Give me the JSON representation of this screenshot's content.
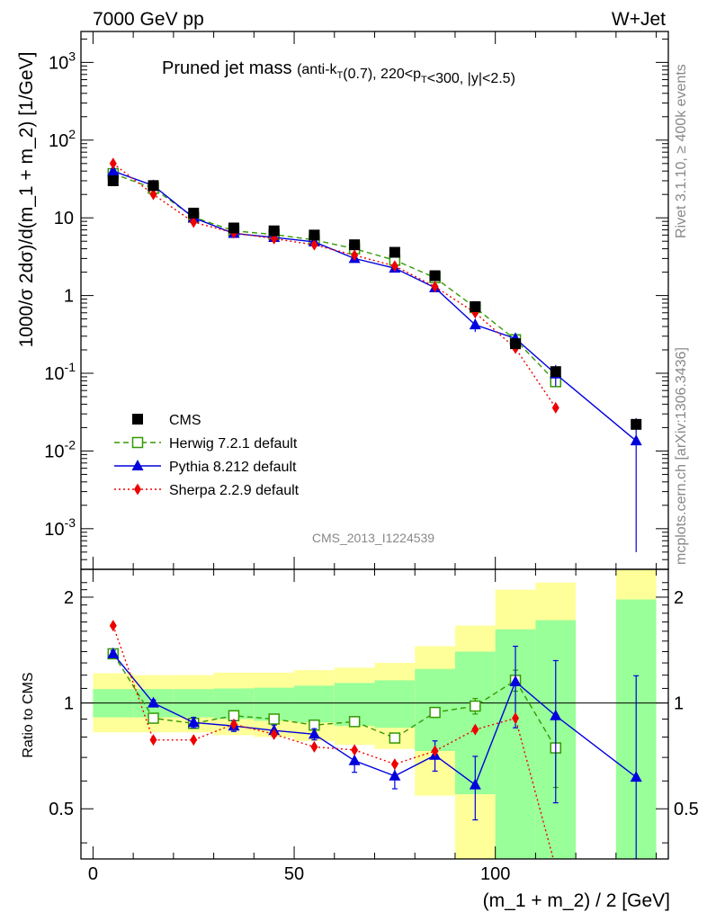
{
  "header": {
    "left_label": "7000 GeV pp",
    "right_label": "W+Jet"
  },
  "side_notes": {
    "rivet": "Rivet 3.1.10, ≥ 400k events",
    "mcplots": "mcplots.cern.ch [arXiv:1306.3436]"
  },
  "analysis_id": "CMS_2013_I1224539",
  "chart_data": [
    {
      "type": "scatter",
      "panel": "main",
      "title": "Pruned jet mass",
      "title_suffix": "(anti-k_T(0.7), 220<p_T<300, |y|<2.5)",
      "xlabel": "(m_1 + m_2) / 2 [GeV]",
      "ylabel": "1000/σ 2dσ)/d(m_1 + m_2) [1/GeV]",
      "log_y": true,
      "xlim": [
        -3,
        143
      ],
      "ylim": [
        0.0003,
        2500
      ],
      "y_ticks": [
        {
          "v": 0.001,
          "base": "10",
          "exp": "-3"
        },
        {
          "v": 0.01,
          "base": "10",
          "exp": "-2"
        },
        {
          "v": 0.1,
          "base": "10",
          "exp": "-1"
        },
        {
          "v": 1,
          "base": "1",
          "exp": ""
        },
        {
          "v": 10,
          "base": "10",
          "exp": ""
        },
        {
          "v": 100,
          "base": "10",
          "exp": "2"
        },
        {
          "v": 1000,
          "base": "10",
          "exp": "3"
        }
      ],
      "legend_position": "bottom-left",
      "series": [
        {
          "name": "CMS",
          "style": "data",
          "color": "#000000",
          "x": [
            5,
            15,
            25,
            35,
            45,
            55,
            65,
            75,
            85,
            95,
            105,
            115,
            135
          ],
          "y": [
            30,
            26,
            11.5,
            7.4,
            6.8,
            6.0,
            4.5,
            3.6,
            1.8,
            0.72,
            0.24,
            0.105,
            0.022
          ]
        },
        {
          "name": "Herwig 7.2.1 default",
          "style": "dashed",
          "marker": "open-square",
          "color": "#339900",
          "x": [
            5,
            15,
            25,
            35,
            45,
            55,
            65,
            75,
            85,
            95,
            105,
            115
          ],
          "y": [
            37,
            24,
            10.2,
            6.8,
            6.1,
            5.2,
            4.0,
            2.85,
            1.7,
            0.7,
            0.27,
            0.078
          ]
        },
        {
          "name": "Pythia 8.212 default",
          "style": "solid",
          "marker": "triangle",
          "color": "#0000dd",
          "x": [
            5,
            15,
            25,
            35,
            45,
            55,
            65,
            75,
            85,
            95,
            105,
            115,
            135
          ],
          "y": [
            40,
            26,
            10,
            6.3,
            5.6,
            4.9,
            3.0,
            2.25,
            1.26,
            0.42,
            0.28,
            0.098,
            0.0135
          ],
          "err": [
            1.5,
            1,
            0.4,
            0.3,
            0.25,
            0.2,
            0.2,
            0.15,
            0.1,
            0.08,
            0.05,
            0.03,
            0.013
          ]
        },
        {
          "name": "Sherpa 2.2.9 default",
          "style": "dotted",
          "marker": "diamond",
          "color": "#ee0000",
          "x": [
            5,
            15,
            25,
            35,
            45,
            55,
            65,
            75,
            85,
            95,
            105,
            115
          ],
          "y": [
            50,
            20,
            8.8,
            6.4,
            5.4,
            4.5,
            3.3,
            2.4,
            1.3,
            0.6,
            0.21,
            0.036
          ]
        }
      ]
    },
    {
      "type": "scatter",
      "panel": "ratio",
      "ylabel": "Ratio to CMS",
      "log_y": true,
      "xlim": [
        -3,
        143
      ],
      "ylim": [
        0.36,
        2.4
      ],
      "x_ticks": [
        0,
        50,
        100
      ],
      "y_ticks": [
        0.5,
        1,
        2
      ],
      "bands": [
        {
          "x0": 0,
          "x1": 10,
          "y_lo": 0.825,
          "y_hi": 1.215,
          "g_lo": 0.91,
          "g_hi": 1.095
        },
        {
          "x0": 10,
          "x1": 20,
          "y_lo": 0.825,
          "y_hi": 1.2,
          "g_lo": 0.91,
          "g_hi": 1.095
        },
        {
          "x0": 20,
          "x1": 30,
          "y_lo": 0.825,
          "y_hi": 1.2,
          "g_lo": 0.91,
          "g_hi": 1.095
        },
        {
          "x0": 30,
          "x1": 40,
          "y_lo": 0.81,
          "y_hi": 1.22,
          "g_lo": 0.9,
          "g_hi": 1.1
        },
        {
          "x0": 40,
          "x1": 50,
          "y_lo": 0.8,
          "y_hi": 1.22,
          "g_lo": 0.89,
          "g_hi": 1.105
        },
        {
          "x0": 50,
          "x1": 60,
          "y_lo": 0.78,
          "y_hi": 1.24,
          "g_lo": 0.88,
          "g_hi": 1.12
        },
        {
          "x0": 60,
          "x1": 70,
          "y_lo": 0.76,
          "y_hi": 1.26,
          "g_lo": 0.86,
          "g_hi": 1.14
        },
        {
          "x0": 70,
          "x1": 80,
          "y_lo": 0.74,
          "y_hi": 1.3,
          "g_lo": 0.85,
          "g_hi": 1.16
        },
        {
          "x0": 80,
          "x1": 90,
          "y_lo": 0.545,
          "y_hi": 1.45,
          "g_lo": 0.73,
          "g_hi": 1.25
        },
        {
          "x0": 90,
          "x1": 100,
          "y_lo": 0.36,
          "y_hi": 1.66,
          "g_lo": 0.55,
          "g_hi": 1.4
        },
        {
          "x0": 100,
          "x1": 110,
          "y_lo": 0.36,
          "y_hi": 2.1,
          "g_lo": 0.36,
          "g_hi": 1.62
        },
        {
          "x0": 110,
          "x1": 120,
          "y_lo": 0.36,
          "y_hi": 2.2,
          "g_lo": 0.36,
          "g_hi": 1.72
        },
        {
          "x0": 130,
          "x1": 140,
          "y_lo": 0.36,
          "y_hi": 2.4,
          "g_lo": 0.36,
          "g_hi": 1.97
        }
      ],
      "series": [
        {
          "name": "Herwig 7.2.1 default",
          "style": "dashed",
          "marker": "open-square",
          "color": "#339900",
          "x": [
            5,
            15,
            25,
            35,
            45,
            55,
            65,
            75,
            85,
            95,
            105,
            115
          ],
          "y": [
            1.38,
            0.905,
            0.875,
            0.92,
            0.9,
            0.865,
            0.885,
            0.795,
            0.94,
            0.98,
            1.16,
            0.745
          ],
          "err": [
            0.02,
            0.015,
            0.015,
            0.02,
            0.02,
            0.02,
            0.02,
            0.02,
            0.03,
            0.05,
            0.08,
            0.17
          ]
        },
        {
          "name": "Pythia 8.212 default",
          "style": "solid",
          "marker": "triangle",
          "color": "#0000dd",
          "x": [
            5,
            15,
            25,
            35,
            45,
            55,
            65,
            75,
            85,
            95,
            105,
            115,
            135
          ],
          "y": [
            1.38,
            1.0,
            0.88,
            0.86,
            0.835,
            0.815,
            0.685,
            0.62,
            0.71,
            0.585,
            1.15,
            0.92,
            0.615
          ],
          "err": [
            0.03,
            0.02,
            0.03,
            0.03,
            0.03,
            0.03,
            0.05,
            0.05,
            0.07,
            0.12,
            0.3,
            0.4,
            0.58
          ]
        },
        {
          "name": "Sherpa 2.2.9 default",
          "style": "dotted",
          "marker": "diamond",
          "color": "#ee0000",
          "x": [
            5,
            15,
            25,
            35,
            45,
            55,
            65,
            75,
            85,
            95,
            105,
            115
          ],
          "y": [
            1.66,
            0.785,
            0.785,
            0.87,
            0.815,
            0.75,
            0.735,
            0.67,
            0.73,
            0.84,
            0.905,
            0.34
          ]
        }
      ]
    }
  ]
}
